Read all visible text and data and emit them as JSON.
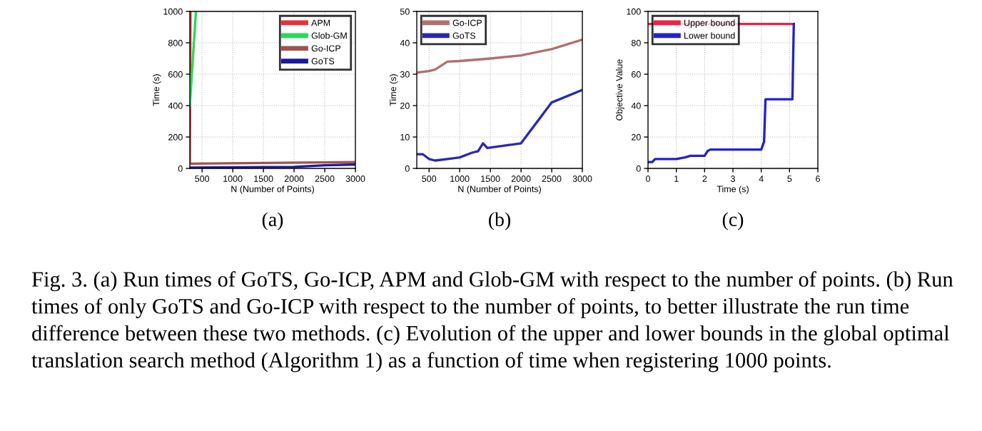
{
  "chart_data": [
    {
      "type": "line",
      "xlabel": "N (Number of Points)",
      "ylabel": "Time (s)",
      "xlim": [
        300,
        3000
      ],
      "xticks": [
        500,
        1000,
        1500,
        2000,
        2500,
        3000
      ],
      "ylim": [
        0,
        1000
      ],
      "yticks": [
        0,
        200,
        400,
        600,
        800,
        1000
      ],
      "grid": true,
      "legend": "top right",
      "series": [
        {
          "name": "APM",
          "color": "#e8303a",
          "x": [
            300,
            310
          ],
          "values": [
            30,
            1000
          ]
        },
        {
          "name": "Glob-GM",
          "color": "#22dd55",
          "x": [
            300,
            400
          ],
          "values": [
            400,
            1000
          ]
        },
        {
          "name": "Go-ICP",
          "color": "#a0524d",
          "x": [
            300,
            3000
          ],
          "values": [
            30,
            40
          ]
        },
        {
          "name": "GoTS",
          "color": "#1a1a9a",
          "x": [
            300,
            2000,
            2500,
            3000
          ],
          "values": [
            5,
            10,
            20,
            25
          ]
        }
      ],
      "annotations": [
        "(a)",
        "Fig. 3. (a) Run times of GoTS, Go-ICP, APM and Glob-GM with respect to the number of points. (b) Run times of only GoTS and Go-ICP with respect to the number of points, to better illustrate the run time difference between these two methods. (c) Evolution of the upper and lower bounds in the global optimal translation search method (Algorithm 1) as a function of time when registering 1000 points."
      ]
    },
    {
      "type": "line",
      "xlabel": "N (Number of Points)",
      "ylabel": "Time (s)",
      "xlim": [
        300,
        3000
      ],
      "xticks": [
        500,
        1000,
        1500,
        2000,
        2500,
        3000
      ],
      "ylim": [
        0,
        50
      ],
      "yticks": [
        0,
        10,
        20,
        30,
        40,
        50
      ],
      "grid": true,
      "legend": "top left",
      "series": [
        {
          "name": "Go-ICP",
          "color": "#b07070",
          "x": [
            300,
            500,
            600,
            800,
            1000,
            1500,
            2000,
            2500,
            3000
          ],
          "values": [
            30.5,
            31,
            31.5,
            34,
            34.2,
            35,
            36,
            38,
            41
          ]
        },
        {
          "name": "GoTS",
          "color": "#2828b4",
          "x": [
            300,
            400,
            500,
            600,
            800,
            1000,
            1200,
            1300,
            1380,
            1450,
            2000,
            2500,
            3000
          ],
          "values": [
            4.5,
            4.5,
            3,
            2.5,
            3,
            3.5,
            5,
            5.5,
            8,
            6.5,
            8,
            21,
            25
          ]
        }
      ],
      "annotations": [
        "(b)"
      ]
    },
    {
      "type": "line",
      "xlabel": "Time (s)",
      "ylabel": "Objective Value",
      "xlim": [
        0,
        6
      ],
      "xticks": [
        0,
        1,
        2,
        3,
        4,
        5,
        6
      ],
      "ylim": [
        0,
        100
      ],
      "yticks": [
        0,
        20,
        40,
        60,
        80,
        100
      ],
      "grid": true,
      "legend": "top left",
      "series": [
        {
          "name": "Upper bound",
          "color": "#ee2244",
          "x": [
            0,
            5.15
          ],
          "values": [
            92,
            92
          ]
        },
        {
          "name": "Lower bound",
          "color": "#2222cc",
          "x": [
            0,
            0.15,
            0.25,
            1,
            1.3,
            1.5,
            2,
            2.1,
            2.2,
            4,
            4.1,
            4.15,
            5,
            5.1,
            5.15
          ],
          "values": [
            4,
            4,
            6,
            6,
            7,
            8,
            8,
            11,
            12,
            12,
            17,
            44,
            44,
            44,
            92
          ]
        }
      ],
      "annotations": [
        "(c)"
      ]
    }
  ]
}
